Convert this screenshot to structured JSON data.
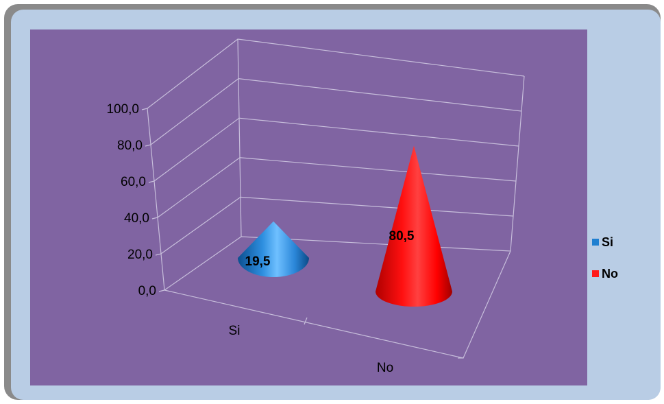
{
  "chart_data": {
    "type": "bar",
    "bar_shape": "cone",
    "view": "3d",
    "categories": [
      "Si",
      "No"
    ],
    "values": [
      19.5,
      80.5
    ],
    "data_labels": [
      "19,5",
      "80,5"
    ],
    "colors": [
      "#1f7fd0",
      "#ff1a1a"
    ],
    "y_ticks": [
      "0,0",
      "20,0",
      "40,0",
      "60,0",
      "80,0",
      "100,0"
    ],
    "ylim": [
      0,
      100
    ],
    "grid": true,
    "legend_position": "right",
    "legend": [
      {
        "label": "Si",
        "color": "#1f7fd0"
      },
      {
        "label": "No",
        "color": "#ff1a1a"
      }
    ]
  }
}
